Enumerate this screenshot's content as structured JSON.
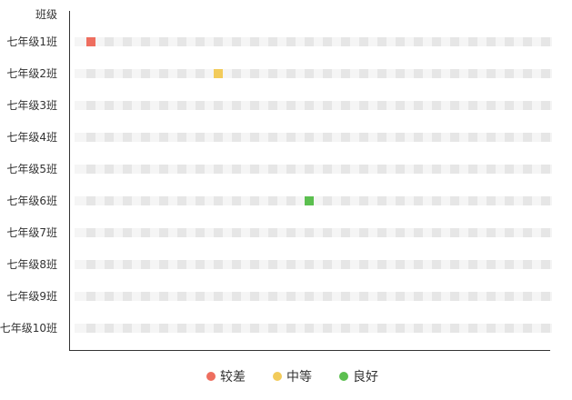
{
  "chart_data": {
    "type": "heatmap",
    "ylabel": "班级",
    "categories": [
      "七年级1班",
      "七年级2班",
      "七年级3班",
      "七年级4班",
      "七年级5班",
      "七年级6班",
      "七年级7班",
      "七年级8班",
      "七年级9班",
      "七年级10班"
    ],
    "cells_per_row": 26,
    "empty_cell_color": "#e6e6e6",
    "levels": [
      {
        "name": "较差",
        "color": "#ee6e5f"
      },
      {
        "name": "中等",
        "color": "#f2cb5a"
      },
      {
        "name": "良好",
        "color": "#5bbf4f"
      }
    ],
    "highlighted": [
      {
        "row": "七年级1班",
        "position": 1,
        "level": "较差"
      },
      {
        "row": "七年级2班",
        "position": 8,
        "level": "中等"
      },
      {
        "row": "七年级6班",
        "position": 13,
        "level": "良好"
      }
    ],
    "grid": false,
    "legend_position": "bottom"
  }
}
